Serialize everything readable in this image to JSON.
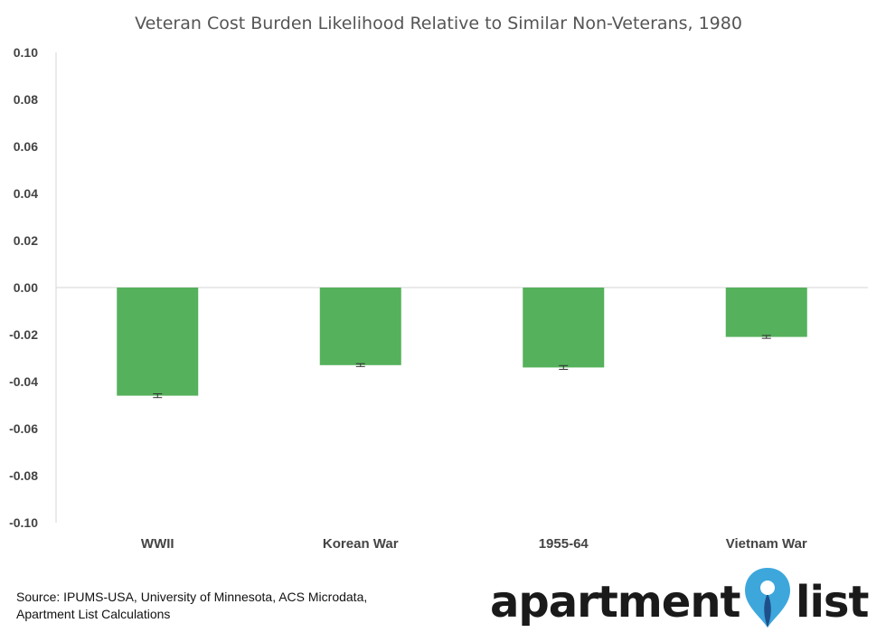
{
  "chart_data": {
    "type": "bar",
    "title": "Veteran Cost Burden Likelihood Relative to Similar Non-Veterans, 1980",
    "categories": [
      "WWII",
      "Korean War",
      "1955-64",
      "Vietnam War"
    ],
    "values": [
      -0.046,
      -0.033,
      -0.034,
      -0.021
    ],
    "error_bars": [
      0.0008,
      0.0006,
      0.0008,
      0.0006
    ],
    "ylim": [
      -0.1,
      0.1
    ],
    "yticks": [
      "0.10",
      "0.08",
      "0.06",
      "0.04",
      "0.02",
      "0.00",
      "-0.02",
      "-0.04",
      "-0.06",
      "-0.08",
      "-0.10"
    ],
    "xlabel": "",
    "ylabel": "",
    "grid": false,
    "bar_color": "#55b15b"
  },
  "footer": {
    "source_line1": "Source: IPUMS-USA, University of Minnesota, ACS Microdata,",
    "source_line2": "Apartment List Calculations"
  },
  "logo": {
    "text_left": "apartment",
    "text_right": "list",
    "pin_color": "#3da7dc",
    "pin_dark": "#1f4f8a"
  }
}
